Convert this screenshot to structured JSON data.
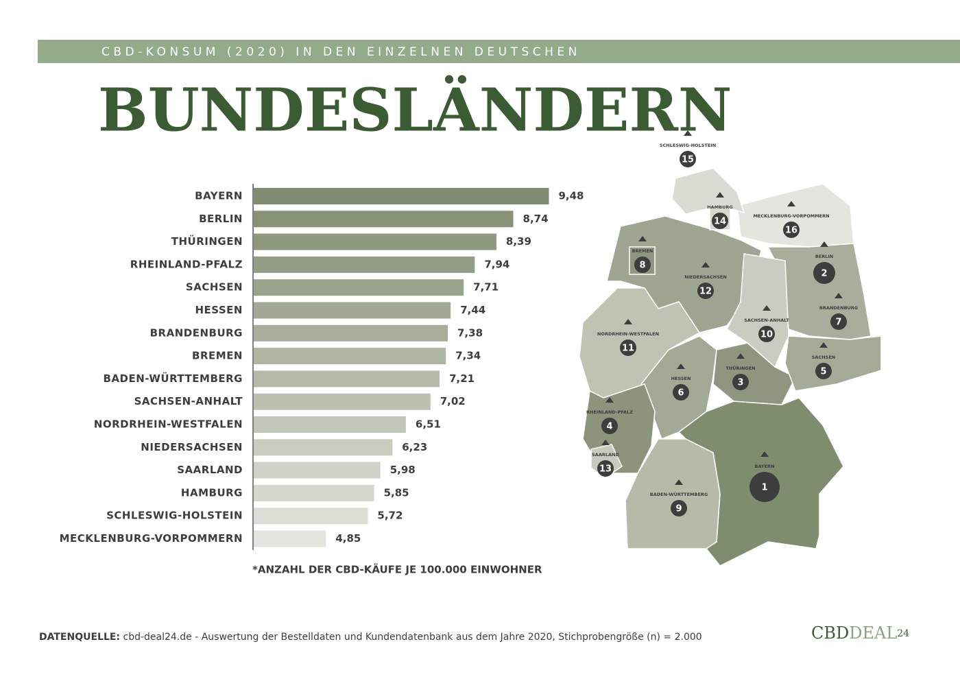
{
  "header": {
    "kicker": "CBD-KONSUM (2020) IN DEN EINZELNEN DEUTSCHEN",
    "title": "BUNDESLÄNDERN"
  },
  "chart_data": {
    "type": "bar",
    "orientation": "horizontal",
    "categories": [
      "BAYERN",
      "BERLIN",
      "THÜRINGEN",
      "RHEINLAND-PFALZ",
      "SACHSEN",
      "HESSEN",
      "BRANDENBURG",
      "BREMEN",
      "BADEN-WÜRTTEMBERG",
      "SACHSEN-ANHALT",
      "NORDRHEIN-WESTFALEN",
      "NIEDERSACHSEN",
      "SAARLAND",
      "HAMBURG",
      "SCHLESWIG-HOLSTEIN",
      "MECKLENBURG-VORPOMMERN"
    ],
    "values": [
      9.48,
      8.74,
      8.39,
      7.94,
      7.71,
      7.44,
      7.38,
      7.34,
      7.21,
      7.02,
      6.51,
      6.23,
      5.98,
      5.85,
      5.72,
      4.85
    ],
    "value_labels": [
      "9,48",
      "8,74",
      "8,39",
      "7,94",
      "7,71",
      "7,44",
      "7,38",
      "7,34",
      "7,21",
      "7,02",
      "6,51",
      "6,23",
      "5,98",
      "5,85",
      "5,72",
      "4,85"
    ],
    "xlim": [
      3.35,
      10
    ],
    "color_range": [
      "#808c6f",
      "#e2e4dd"
    ],
    "note": "*ANZAHL DER CBD-KÄUFE JE 100.000 EINWOHNER"
  },
  "map": {
    "regions": [
      {
        "label": "BAYERN",
        "rank": "1",
        "color": "#7f8c6e"
      },
      {
        "label": "BADEN-WÜRTTEMBERG",
        "rank": "9",
        "color": "#b6bba9"
      },
      {
        "label": "NIEDERSACHSEN",
        "rank": "12",
        "color": "#9ea591"
      },
      {
        "label": "NORDRHEIN-WESTFALEN",
        "rank": "11",
        "color": "#bec3b4"
      },
      {
        "label": "MECKLENBURG-VORPOMMERN",
        "rank": "16",
        "color": "#e3e5df"
      },
      {
        "label": "BRANDENBURG",
        "rank": "7",
        "color": "#a9ae9c"
      },
      {
        "label": "SACHSEN-ANHALT",
        "rank": "10",
        "color": "#c9ccc0"
      },
      {
        "label": "HESSEN",
        "rank": "6",
        "color": "#a2a994"
      },
      {
        "label": "THÜRINGEN",
        "rank": "3",
        "color": "#8e967f"
      },
      {
        "label": "SACHSEN",
        "rank": "5",
        "color": "#a3aa95"
      },
      {
        "label": "RHEINLAND-PFALZ",
        "rank": "4",
        "color": "#8c947c"
      },
      {
        "label": "SCHLESWIG-HOLSTEIN",
        "rank": "15",
        "color": "#d9dcd2"
      },
      {
        "label": "HAMBURG",
        "rank": "14",
        "color": "#d5d8cd"
      },
      {
        "label": "BREMEN",
        "rank": "8",
        "color": "#8e967f"
      },
      {
        "label": "SAARLAND",
        "rank": "13",
        "color": "#c7cbbd"
      },
      {
        "label": "BERLIN",
        "rank": "2",
        "color": "#8e967f"
      }
    ]
  },
  "footer": {
    "source_label": "DATENQUELLE:",
    "source_text": "cbd-deal24.de - Auswertung der Bestelldaten und Kundendatenbank aus dem Jahre 2020, Stichprobengröße (n) = 2.000"
  },
  "logo": {
    "part1": "CBD",
    "part2": "DEAL",
    "part3": "24"
  }
}
